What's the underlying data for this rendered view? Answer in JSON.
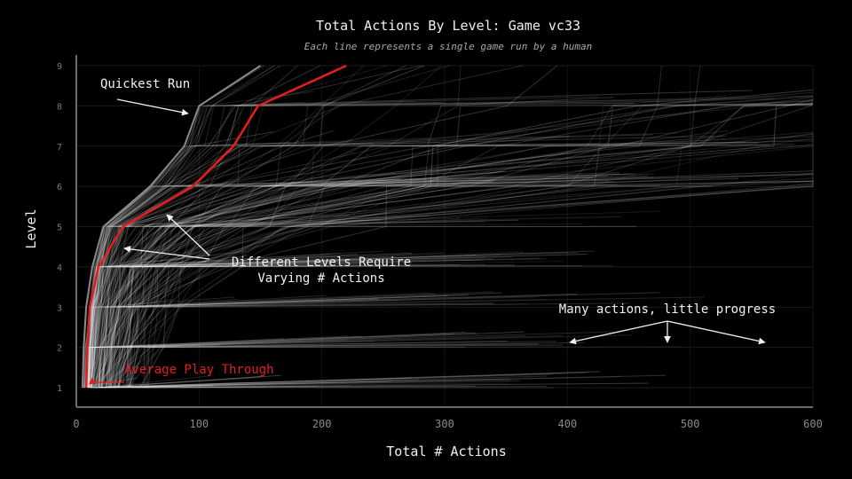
{
  "chart_data": {
    "type": "line",
    "title": "Total Actions By Level: Game vc33",
    "subtitle": "Each line represents a single game run by a human",
    "xlabel": "Total # Actions",
    "ylabel": "Level",
    "xlim": [
      0,
      600
    ],
    "ylim": [
      1,
      9
    ],
    "xticks": [
      "0",
      "100",
      "200",
      "300",
      "400",
      "500",
      "600"
    ],
    "yticks": [
      "1",
      "2",
      "3",
      "4",
      "5",
      "6",
      "7",
      "8",
      "9"
    ],
    "grid": true,
    "highlight_series": {
      "name": "Average Play Through",
      "color": "#e31e1e",
      "x": [
        8,
        9,
        11,
        18,
        38,
        95,
        128,
        148,
        220
      ],
      "y": [
        1,
        2,
        3,
        4,
        5,
        6,
        7,
        8,
        9
      ]
    },
    "quickest_run": {
      "color": "#8a8a8a",
      "x": [
        5,
        6,
        8,
        13,
        22,
        60,
        88,
        100,
        150
      ],
      "y": [
        1,
        2,
        3,
        4,
        5,
        6,
        7,
        8,
        9
      ]
    },
    "annotations": [
      {
        "text": "Quickest Run"
      },
      {
        "text": "Different Levels Require"
      },
      {
        "text": "Varying # Actions"
      },
      {
        "text": "Many actions, little progress"
      },
      {
        "text": "Average Play Through"
      }
    ],
    "line_color": "#ffffff",
    "background": "#000000"
  }
}
